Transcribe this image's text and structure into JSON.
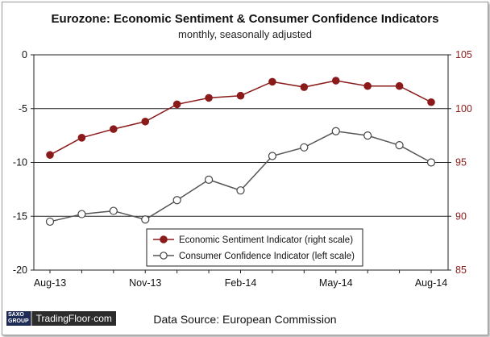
{
  "chart_data": {
    "type": "line",
    "title": "Eurozone: Economic Sentiment & Consumer Confidence Indicators",
    "subtitle": "monthly, seasonally adjusted",
    "categories": [
      "Aug-13",
      "Sep-13",
      "Oct-13",
      "Nov-13",
      "Dec-13",
      "Jan-14",
      "Feb-14",
      "Mar-14",
      "Apr-14",
      "May-14",
      "Jun-14",
      "Jul-14",
      "Aug-14"
    ],
    "x_tick_labels": [
      "Aug-13",
      "Nov-13",
      "Feb-14",
      "May-14",
      "Aug-14"
    ],
    "left_axis": {
      "ylim": [
        -20,
        0
      ],
      "ticks": [
        0,
        -5,
        -10,
        -15,
        -20
      ],
      "tick_labels": [
        "0",
        "-5",
        "-10",
        "-15",
        "-20"
      ]
    },
    "right_axis": {
      "ylim": [
        85,
        105
      ],
      "ticks": [
        105,
        100,
        95,
        90,
        85
      ],
      "tick_labels": [
        "105",
        "100",
        "95",
        "90",
        "85"
      ],
      "color": "#8b1a1a"
    },
    "series": [
      {
        "name": "Economic Sentiment Indicator (right scale)",
        "axis": "right",
        "color": "#8b1a1a",
        "marker": "filled-circle",
        "values": [
          95.7,
          97.3,
          98.1,
          98.8,
          100.4,
          101.0,
          101.2,
          102.5,
          102.0,
          102.6,
          102.1,
          102.1,
          100.6
        ]
      },
      {
        "name": "Consumer Confidence Indicator (left scale)",
        "axis": "left",
        "color": "#555555",
        "marker": "open-circle",
        "values": [
          -15.5,
          -14.8,
          -14.5,
          -15.3,
          -13.5,
          -11.6,
          -12.6,
          -9.4,
          -8.6,
          -7.1,
          -7.5,
          -8.4,
          -10.0
        ]
      }
    ],
    "gridlines": [
      -5,
      -10,
      -15
    ],
    "legend_position": "bottom-center"
  },
  "source_label": "Data Source: European Commission",
  "logo": {
    "brand_top": "SAXO",
    "brand_bottom": "GROUP",
    "name": "TradingFloor·com"
  }
}
